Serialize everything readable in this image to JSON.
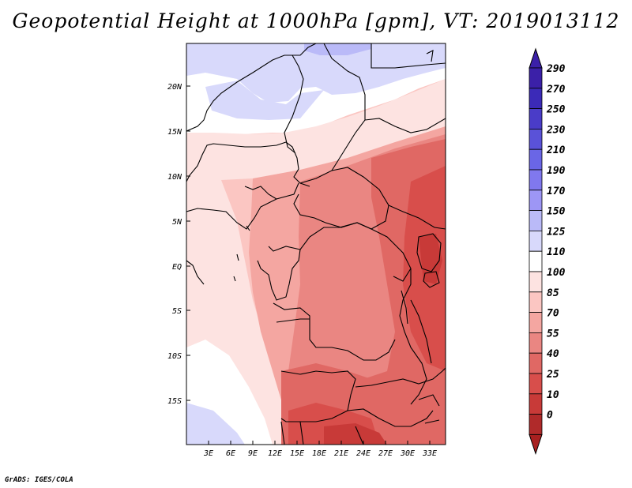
{
  "title": "Geopotential Height at 1000hPa [gpm], VT: 2019013112",
  "credit": "GrADS: IGES/COLA",
  "map": {
    "lat_ticks": [
      "20N",
      "15N",
      "10N",
      "5N",
      "EQ",
      "5S",
      "10S",
      "15S"
    ],
    "lon_ticks": [
      "3E",
      "6E",
      "9E",
      "12E",
      "15E",
      "18E",
      "21E",
      "24E",
      "27E",
      "30E",
      "33E"
    ]
  },
  "colorbar": {
    "levels": [
      {
        "label": "290",
        "color": "#3b20a8"
      },
      {
        "label": "270",
        "color": "#3b2ab8"
      },
      {
        "label": "250",
        "color": "#4a3cc8"
      },
      {
        "label": "230",
        "color": "#5a52d8"
      },
      {
        "label": "210",
        "color": "#6a66e6"
      },
      {
        "label": "190",
        "color": "#8078ee"
      },
      {
        "label": "170",
        "color": "#9d96f5"
      },
      {
        "label": "150",
        "color": "#babaf8"
      },
      {
        "label": "125",
        "color": "#d8d9fb"
      },
      {
        "label": "110",
        "color": "#ffffff"
      },
      {
        "label": "100",
        "color": "#fde3e1"
      },
      {
        "label": "85",
        "color": "#fbc6c2"
      },
      {
        "label": "70",
        "color": "#f4a6a1"
      },
      {
        "label": "55",
        "color": "#ea8682"
      },
      {
        "label": "40",
        "color": "#e06864"
      },
      {
        "label": "25",
        "color": "#d84e4b"
      },
      {
        "label": "10",
        "color": "#c83a38"
      },
      {
        "label": "0",
        "color": "#b02a2a"
      }
    ],
    "bottom_color": "#a82020"
  }
}
